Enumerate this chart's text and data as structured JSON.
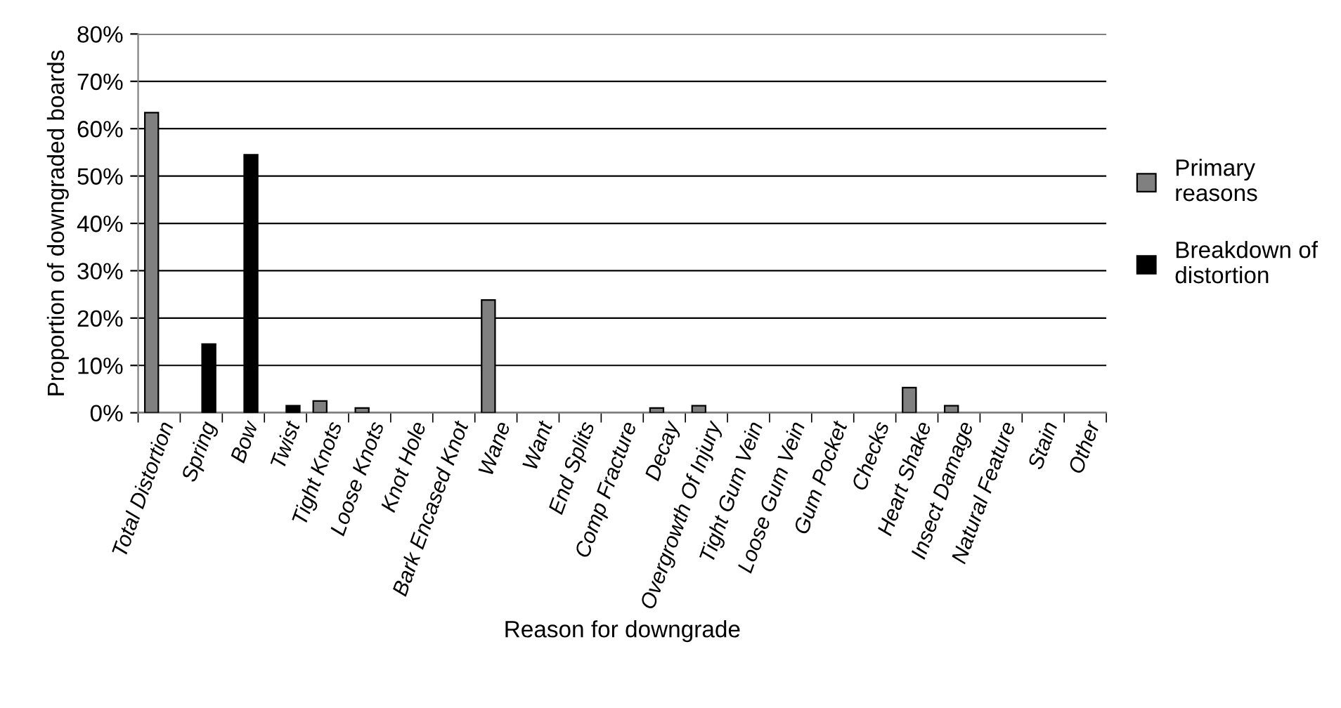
{
  "chart_data": {
    "type": "bar",
    "xlabel": "Reason for downgrade",
    "ylabel": "Proportion of downgraded boards",
    "categories": [
      "Total Distortion",
      "Spring",
      "Bow",
      "Twist",
      "Tight Knots",
      "Loose Knots",
      "Knot Hole",
      "Bark Encased Knot",
      "Wane",
      "Want",
      "End Splits",
      "Comp Fracture",
      "Decay",
      "Overgrowth Of Injury",
      "Tight Gum Vein",
      "Loose Gum Vein",
      "Gum Pocket",
      "Checks",
      "Heart Shake",
      "Insect Damage",
      "Natural Feature",
      "Stain",
      "Other"
    ],
    "series": [
      {
        "name": "Primary reasons",
        "color": "#808080",
        "values": [
          63.4,
          null,
          null,
          null,
          2.5,
          1.0,
          null,
          null,
          23.8,
          null,
          null,
          null,
          1.0,
          1.5,
          null,
          null,
          null,
          null,
          5.3,
          1.5,
          null,
          null,
          null
        ]
      },
      {
        "name": "Breakdown of distortion",
        "color": "#000000",
        "values": [
          null,
          14.5,
          54.5,
          1.5,
          null,
          null,
          null,
          null,
          null,
          null,
          null,
          null,
          null,
          null,
          null,
          null,
          null,
          null,
          null,
          null,
          null,
          null,
          null
        ]
      }
    ],
    "ylim": [
      0,
      80
    ],
    "yticks": [
      {
        "value": 0,
        "label": "0%"
      },
      {
        "value": 10,
        "label": "10%"
      },
      {
        "value": 20,
        "label": "20%"
      },
      {
        "value": 30,
        "label": "30%"
      },
      {
        "value": 40,
        "label": "40%"
      },
      {
        "value": 50,
        "label": "50%"
      },
      {
        "value": 60,
        "label": "60%"
      },
      {
        "value": 70,
        "label": "70%"
      },
      {
        "value": 80,
        "label": "80%"
      }
    ],
    "grid": "y",
    "legend": "right"
  }
}
